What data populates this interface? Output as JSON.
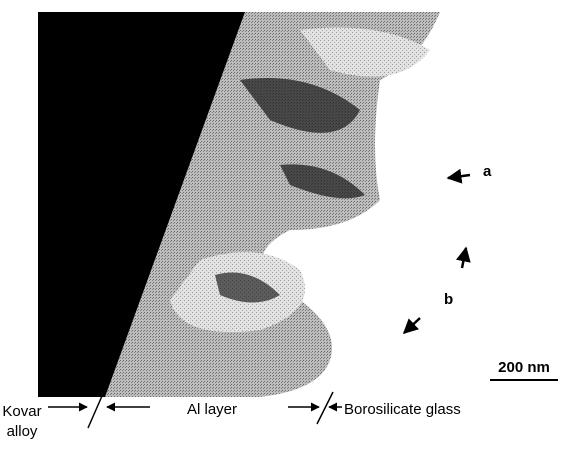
{
  "annotations": {
    "a": "a",
    "b": "b"
  },
  "scale_bar": {
    "label": "200 nm"
  },
  "regions": {
    "kovar": [
      "Kovar",
      "alloy"
    ],
    "al_layer": "Al layer",
    "glass": "Borosilicate glass"
  }
}
